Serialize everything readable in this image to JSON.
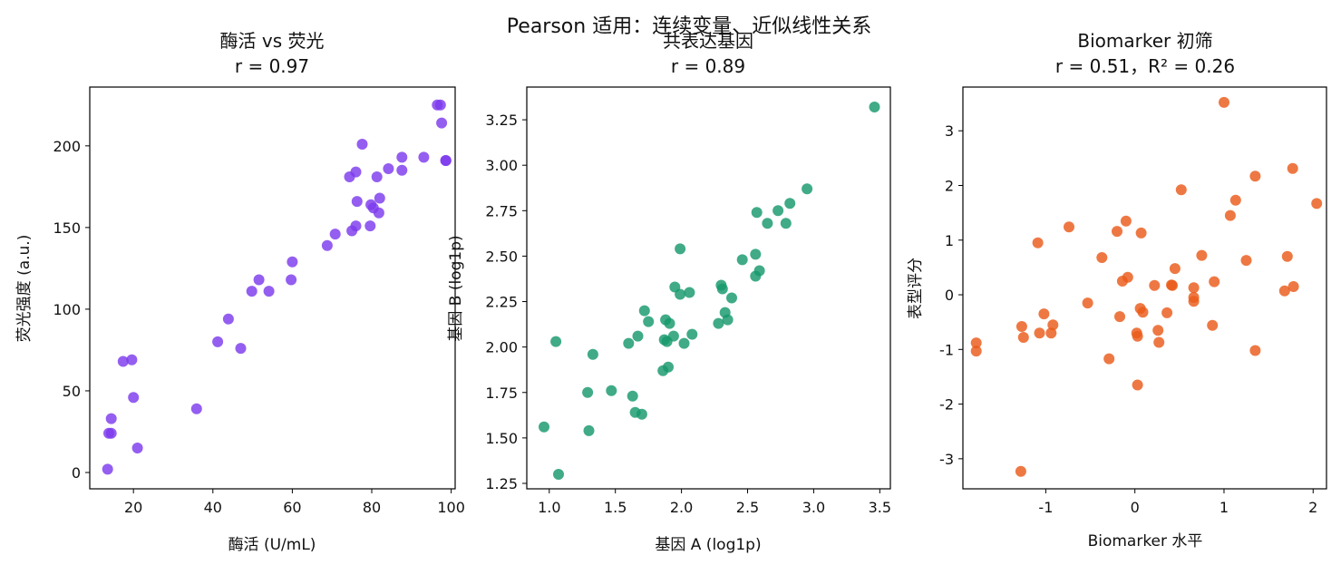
{
  "figure": {
    "suptitle": "Pearson 适用：连续变量、近似线性关系"
  },
  "chart_data": [
    {
      "type": "scatter",
      "title": "酶活 vs 荧光",
      "subtitle": "r = 0.97",
      "xlabel": "酶活 (U/mL)",
      "ylabel": "荧光强度 (a.u.)",
      "xlim": [
        9,
        101
      ],
      "ylim": [
        -10,
        236
      ],
      "xticks": [
        20,
        40,
        60,
        80,
        100
      ],
      "yticks": [
        0,
        50,
        100,
        150,
        200
      ],
      "grid": false,
      "color": "#7c3aed",
      "points": [
        [
          13.5,
          2
        ],
        [
          13.8,
          24
        ],
        [
          14.4,
          24
        ],
        [
          14.4,
          33
        ],
        [
          17.4,
          68
        ],
        [
          19.6,
          69
        ],
        [
          20.0,
          46
        ],
        [
          21.0,
          15
        ],
        [
          35.9,
          39
        ],
        [
          41.2,
          80
        ],
        [
          43.9,
          94
        ],
        [
          47.0,
          76
        ],
        [
          49.8,
          111
        ],
        [
          51.6,
          118
        ],
        [
          54.1,
          111
        ],
        [
          59.7,
          118
        ],
        [
          60.0,
          129
        ],
        [
          68.8,
          139
        ],
        [
          70.8,
          146
        ],
        [
          74.4,
          181
        ],
        [
          75.0,
          148
        ],
        [
          76.0,
          151
        ],
        [
          76.0,
          184
        ],
        [
          76.3,
          166
        ],
        [
          77.6,
          201
        ],
        [
          79.6,
          151
        ],
        [
          79.8,
          164
        ],
        [
          80.4,
          162
        ],
        [
          81.3,
          181
        ],
        [
          81.8,
          159
        ],
        [
          82.0,
          168
        ],
        [
          84.2,
          186
        ],
        [
          87.6,
          185
        ],
        [
          87.6,
          193
        ],
        [
          93.1,
          193
        ],
        [
          96.5,
          225
        ],
        [
          97.3,
          225
        ],
        [
          97.6,
          214
        ],
        [
          98.6,
          191
        ],
        [
          98.7,
          191
        ]
      ]
    },
    {
      "type": "scatter",
      "title": "共表达基因",
      "subtitle": "r = 0.89",
      "xlabel": "基因 A (log1p)",
      "ylabel": "基因 B (log1p)",
      "xlim": [
        0.83,
        3.58
      ],
      "ylim": [
        1.22,
        3.43
      ],
      "xticks": [
        1.0,
        1.5,
        2.0,
        2.5,
        3.0,
        3.5
      ],
      "xticklabels": [
        "1.0",
        "1.5",
        "2.0",
        "2.5",
        "3.0",
        "3.5"
      ],
      "yticks": [
        1.25,
        1.5,
        1.75,
        2.0,
        2.25,
        2.5,
        2.75,
        3.0,
        3.25
      ],
      "yticklabels": [
        "1.25",
        "1.50",
        "1.75",
        "2.00",
        "2.25",
        "2.50",
        "2.75",
        "3.00",
        "3.25"
      ],
      "grid": false,
      "color": "#16996b",
      "points": [
        [
          0.96,
          1.56
        ],
        [
          1.05,
          2.03
        ],
        [
          1.07,
          1.3
        ],
        [
          1.29,
          1.75
        ],
        [
          1.3,
          1.54
        ],
        [
          1.33,
          1.96
        ],
        [
          1.47,
          1.76
        ],
        [
          1.6,
          2.02
        ],
        [
          1.63,
          1.73
        ],
        [
          1.65,
          1.64
        ],
        [
          1.67,
          2.06
        ],
        [
          1.7,
          1.63
        ],
        [
          1.72,
          2.2
        ],
        [
          1.75,
          2.14
        ],
        [
          1.86,
          1.87
        ],
        [
          1.87,
          2.04
        ],
        [
          1.88,
          2.15
        ],
        [
          1.89,
          2.03
        ],
        [
          1.9,
          1.89
        ],
        [
          1.91,
          2.13
        ],
        [
          1.94,
          2.06
        ],
        [
          1.95,
          2.33
        ],
        [
          1.99,
          2.54
        ],
        [
          1.99,
          2.29
        ],
        [
          2.02,
          2.02
        ],
        [
          2.06,
          2.3
        ],
        [
          2.08,
          2.07
        ],
        [
          2.28,
          2.13
        ],
        [
          2.3,
          2.34
        ],
        [
          2.31,
          2.32
        ],
        [
          2.33,
          2.19
        ],
        [
          2.35,
          2.15
        ],
        [
          2.38,
          2.27
        ],
        [
          2.46,
          2.48
        ],
        [
          2.56,
          2.51
        ],
        [
          2.56,
          2.39
        ],
        [
          2.57,
          2.74
        ],
        [
          2.59,
          2.42
        ],
        [
          2.65,
          2.68
        ],
        [
          2.73,
          2.75
        ],
        [
          2.79,
          2.68
        ],
        [
          2.82,
          2.79
        ],
        [
          2.95,
          2.87
        ],
        [
          3.46,
          3.32
        ]
      ]
    },
    {
      "type": "scatter",
      "title": "Biomarker 初筛",
      "subtitle": "r = 0.51，R² = 0.26",
      "xlabel": "Biomarker 水平",
      "ylabel": "表型评分",
      "xlim": [
        -1.93,
        2.15
      ],
      "ylim": [
        -3.55,
        3.8
      ],
      "xticks": [
        -1,
        0,
        1,
        2
      ],
      "yticks": [
        -3,
        -2,
        -1,
        0,
        1,
        2,
        3
      ],
      "grid": false,
      "color": "#ea5a1a",
      "points": [
        [
          -1.78,
          -0.88
        ],
        [
          -1.78,
          -1.03
        ],
        [
          -1.28,
          -3.23
        ],
        [
          -1.27,
          -0.58
        ],
        [
          -1.25,
          -0.78
        ],
        [
          -1.09,
          0.95
        ],
        [
          -1.07,
          -0.7
        ],
        [
          -1.02,
          -0.35
        ],
        [
          -0.94,
          -0.7
        ],
        [
          -0.92,
          -0.55
        ],
        [
          -0.74,
          1.24
        ],
        [
          -0.53,
          -0.15
        ],
        [
          -0.37,
          0.68
        ],
        [
          -0.29,
          -1.17
        ],
        [
          -0.2,
          1.16
        ],
        [
          -0.17,
          -0.4
        ],
        [
          -0.14,
          0.25
        ],
        [
          -0.1,
          1.35
        ],
        [
          -0.08,
          0.32
        ],
        [
          0.02,
          -0.7
        ],
        [
          0.03,
          -0.76
        ],
        [
          0.03,
          -1.65
        ],
        [
          0.06,
          -0.25
        ],
        [
          0.07,
          1.13
        ],
        [
          0.09,
          -0.32
        ],
        [
          0.22,
          0.17
        ],
        [
          0.26,
          -0.65
        ],
        [
          0.27,
          -0.87
        ],
        [
          0.36,
          -0.33
        ],
        [
          0.41,
          0.18
        ],
        [
          0.42,
          0.17
        ],
        [
          0.45,
          0.48
        ],
        [
          0.52,
          1.92
        ],
        [
          0.66,
          0.13
        ],
        [
          0.66,
          -0.05
        ],
        [
          0.66,
          -0.12
        ],
        [
          0.75,
          0.72
        ],
        [
          0.87,
          -0.56
        ],
        [
          0.89,
          0.24
        ],
        [
          1.0,
          3.52
        ],
        [
          1.07,
          1.45
        ],
        [
          1.13,
          1.73
        ],
        [
          1.25,
          0.63
        ],
        [
          1.35,
          2.17
        ],
        [
          1.35,
          -1.02
        ],
        [
          1.68,
          0.07
        ],
        [
          1.71,
          0.7
        ],
        [
          1.77,
          2.31
        ],
        [
          1.78,
          0.15
        ],
        [
          2.04,
          1.67
        ]
      ]
    }
  ]
}
